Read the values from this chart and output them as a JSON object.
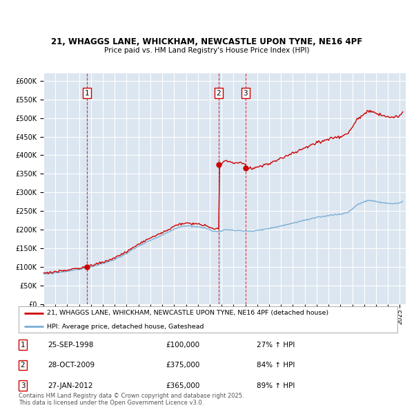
{
  "title_line1": "21, WHAGGS LANE, WHICKHAM, NEWCASTLE UPON TYNE, NE16 4PF",
  "title_line2": "Price paid vs. HM Land Registry's House Price Index (HPI)",
  "plot_bg_color": "#dce6f1",
  "grid_color": "#ffffff",
  "sale_prices": [
    100000,
    375000,
    365000
  ],
  "sale_labels": [
    "1",
    "2",
    "3"
  ],
  "sale_info": [
    {
      "label": "1",
      "date": "25-SEP-1998",
      "price": "£100,000",
      "hpi": "27% ↑ HPI"
    },
    {
      "label": "2",
      "date": "28-OCT-2009",
      "price": "£375,000",
      "hpi": "84% ↑ HPI"
    },
    {
      "label": "3",
      "date": "27-JAN-2012",
      "price": "£365,000",
      "hpi": "89% ↑ HPI"
    }
  ],
  "legend_line1": "21, WHAGGS LANE, WHICKHAM, NEWCASTLE UPON TYNE, NE16 4PF (detached house)",
  "legend_line2": "HPI: Average price, detached house, Gateshead",
  "footer": "Contains HM Land Registry data © Crown copyright and database right 2025.\nThis data is licensed under the Open Government Licence v3.0.",
  "red_color": "#cc0000",
  "blue_color": "#7bafd4",
  "ylim": [
    0,
    620000
  ],
  "yticks": [
    0,
    50000,
    100000,
    150000,
    200000,
    250000,
    300000,
    350000,
    400000,
    450000,
    500000,
    550000,
    600000
  ],
  "xlim_start": 1995.0,
  "xlim_end": 2025.5
}
